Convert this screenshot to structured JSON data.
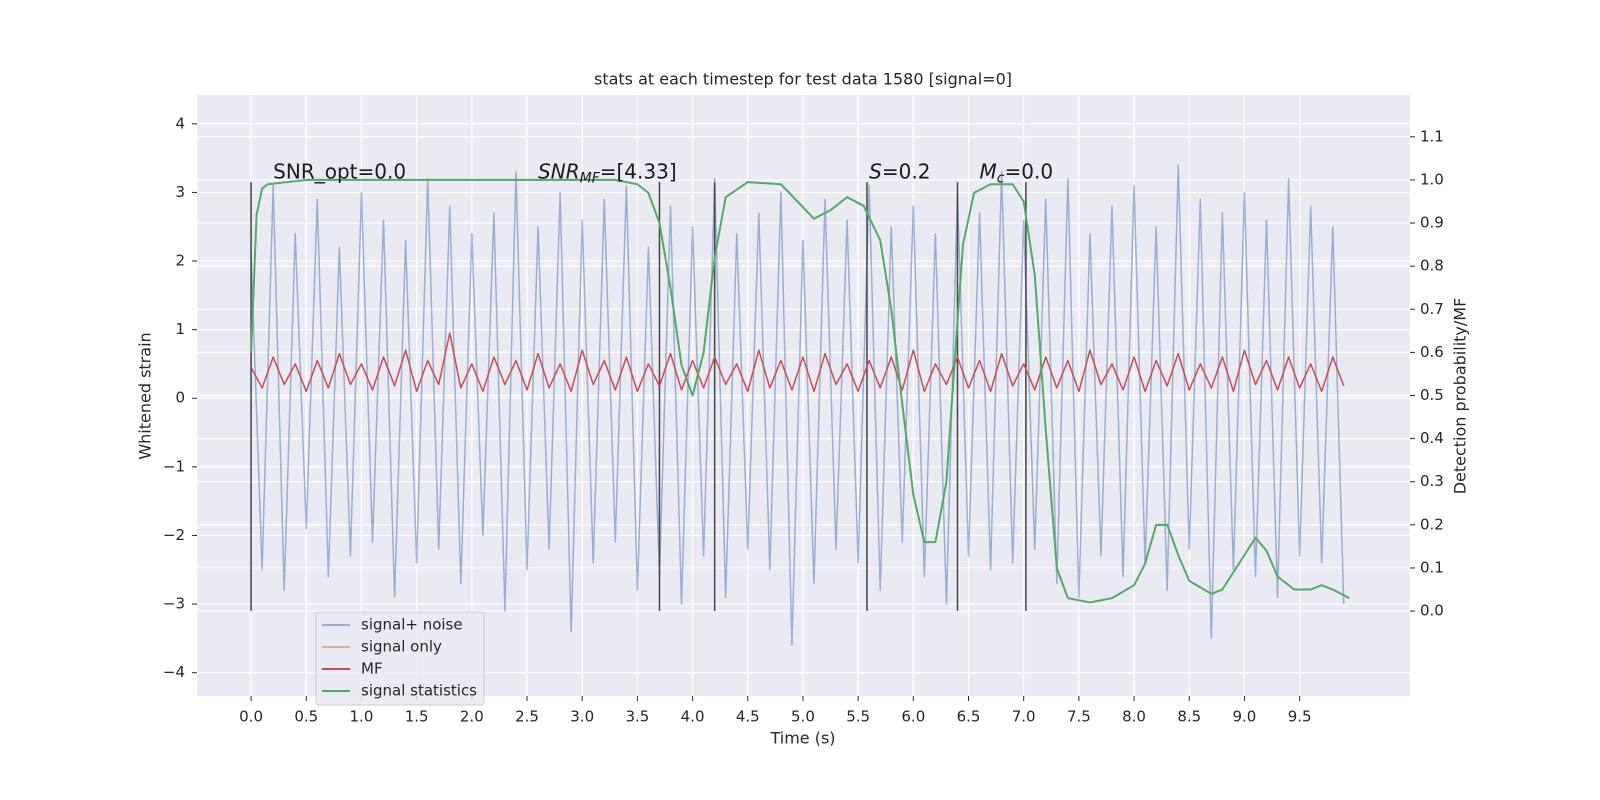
{
  "chart_data": {
    "type": "line",
    "title": "stats at each timestep for test data 1580 [signal=0]",
    "xlabel": "Time (s)",
    "ylabel": "Whitened strain",
    "y2label": "Detection probability/MF",
    "xlim": [
      -0.49,
      10.5
    ],
    "ylim": [
      -4.34,
      4.42
    ],
    "y2lim": [
      -0.197,
      1.197
    ],
    "xticks": [
      {
        "value": 0,
        "label": "0.0"
      },
      0.5,
      {
        "value": 1,
        "label": "1.0"
      },
      1.5,
      {
        "value": 2,
        "label": "2.0"
      },
      2.5,
      {
        "value": 3,
        "label": "3.0"
      },
      3.5,
      {
        "value": 4,
        "label": "4.0"
      },
      4.5,
      {
        "value": 5,
        "label": "5.0"
      },
      5.5,
      {
        "value": 6,
        "label": "6.0"
      },
      6.5,
      {
        "value": 7,
        "label": "7.0"
      },
      7.5,
      {
        "value": 8,
        "label": "8.0"
      },
      8.5,
      {
        "value": 9,
        "label": "9.0"
      },
      9.5
    ],
    "yticks": [
      {
        "value": -4,
        "label": "−4"
      },
      {
        "value": -3,
        "label": "−3"
      },
      {
        "value": -2,
        "label": "−2"
      },
      {
        "value": -1,
        "label": "−1"
      },
      0,
      1,
      2,
      3,
      4
    ],
    "y2ticks": [
      {
        "value": 0,
        "label": "0.0"
      },
      0.1,
      0.2,
      0.3,
      0.4,
      0.5,
      0.6,
      0.7,
      0.8,
      0.9,
      {
        "value": 1,
        "label": "1.0"
      },
      1.1
    ],
    "grid": true,
    "legend": "lower left",
    "x": [
      0.0,
      0.1,
      0.2,
      0.3,
      0.4,
      0.5,
      0.6,
      0.7,
      0.8,
      0.9,
      1.0,
      1.1,
      1.2,
      1.3,
      1.4,
      1.5,
      1.6,
      1.7,
      1.8,
      1.9,
      2.0,
      2.1,
      2.2,
      2.3,
      2.4,
      2.5,
      2.6,
      2.7,
      2.8,
      2.9,
      3.0,
      3.1,
      3.2,
      3.3,
      3.4,
      3.5,
      3.6,
      3.7,
      3.8,
      3.9,
      4.0,
      4.1,
      4.2,
      4.3,
      4.4,
      4.5,
      4.6,
      4.7,
      4.8,
      4.9,
      5.0,
      5.1,
      5.2,
      5.3,
      5.4,
      5.5,
      5.6,
      5.7,
      5.8,
      5.9,
      6.0,
      6.1,
      6.2,
      6.3,
      6.4,
      6.5,
      6.6,
      6.7,
      6.8,
      6.9,
      7.0,
      7.1,
      7.2,
      7.3,
      7.4,
      7.5,
      7.6,
      7.7,
      7.8,
      7.9,
      8.0,
      8.1,
      8.2,
      8.3,
      8.4,
      8.5,
      8.6,
      8.7,
      8.8,
      8.9,
      9.0,
      9.1,
      9.2,
      9.3,
      9.4,
      9.5,
      9.6,
      9.7,
      9.8,
      9.9
    ],
    "series": [
      {
        "name": "signal+ noise",
        "color": "#4c72b0",
        "values": [
          2.1,
          -2.5,
          3.1,
          -2.8,
          2.4,
          -1.9,
          2.9,
          -2.6,
          2.2,
          -2.3,
          3.0,
          -2.1,
          2.6,
          -2.9,
          2.3,
          -2.4,
          3.2,
          -2.2,
          2.8,
          -2.7,
          2.4,
          -2.0,
          2.7,
          -3.1,
          3.3,
          -2.5,
          2.5,
          -2.2,
          3.0,
          -3.4,
          2.6,
          -2.4,
          2.9,
          -2.1,
          3.1,
          -2.8,
          2.2,
          -2.6,
          2.8,
          -3.0,
          2.5,
          -2.3,
          3.2,
          -2.9,
          2.4,
          -2.2,
          2.7,
          -2.5,
          3.0,
          -3.6,
          2.3,
          -2.7,
          2.9,
          -2.2,
          2.6,
          -2.4,
          3.1,
          -2.8,
          2.5,
          -2.1,
          2.8,
          -2.6,
          2.4,
          -3.0,
          3.0,
          -2.3,
          2.7,
          -2.5,
          3.3,
          -2.4,
          2.6,
          -2.2,
          2.9,
          -2.7,
          3.2,
          -2.9,
          2.4,
          -2.3,
          2.8,
          -2.6,
          3.1,
          -2.4,
          2.5,
          -2.8,
          3.4,
          -2.2,
          2.9,
          -3.5,
          2.7,
          -2.5,
          3.0,
          -2.6,
          2.6,
          -2.9,
          3.2,
          -2.3,
          2.8,
          -2.4,
          2.5,
          -3.0
        ]
      },
      {
        "name": "signal only",
        "color": "#dd8452",
        "x": [],
        "values": []
      },
      {
        "name": "MF",
        "color": "#c44e52",
        "values": [
          0.45,
          0.15,
          0.6,
          0.2,
          0.5,
          0.1,
          0.55,
          0.15,
          0.65,
          0.2,
          0.5,
          0.12,
          0.6,
          0.18,
          0.7,
          0.1,
          0.55,
          0.2,
          0.95,
          0.15,
          0.5,
          0.1,
          0.6,
          0.2,
          0.55,
          0.12,
          0.65,
          0.15,
          0.5,
          0.1,
          0.7,
          0.2,
          0.55,
          0.12,
          0.6,
          0.1,
          0.5,
          0.18,
          0.65,
          0.12,
          0.55,
          0.15,
          0.6,
          0.2,
          0.5,
          0.1,
          0.7,
          0.15,
          0.55,
          0.12,
          0.6,
          0.1,
          0.65,
          0.2,
          0.5,
          0.1,
          0.55,
          0.15,
          0.6,
          0.12,
          0.7,
          0.1,
          0.5,
          0.2,
          0.6,
          0.15,
          0.55,
          0.1,
          0.65,
          0.18,
          0.5,
          0.12,
          0.6,
          0.15,
          0.55,
          0.1,
          0.7,
          0.2,
          0.5,
          0.12,
          0.6,
          0.1,
          0.55,
          0.18,
          0.65,
          0.12,
          0.5,
          0.15,
          0.6,
          0.1,
          0.7,
          0.2,
          0.55,
          0.12,
          0.6,
          0.15,
          0.5,
          0.1,
          0.6,
          0.18
        ]
      },
      {
        "name": "signal statistics",
        "color": "#55a868",
        "axis": "y2",
        "x": [
          0,
          0.05,
          0.1,
          0.15,
          0.5,
          3.3,
          3.5,
          3.6,
          3.7,
          3.8,
          3.9,
          4.0,
          4.1,
          4.2,
          4.3,
          4.5,
          4.8,
          4.95,
          5.1,
          5.25,
          5.4,
          5.55,
          5.7,
          5.8,
          5.9,
          6.0,
          6.1,
          6.2,
          6.3,
          6.38,
          6.45,
          6.55,
          6.7,
          6.9,
          7.0,
          7.1,
          7.2,
          7.3,
          7.4,
          7.6,
          7.8,
          8.0,
          8.1,
          8.2,
          8.3,
          8.4,
          8.5,
          8.7,
          8.8,
          9.0,
          9.1,
          9.2,
          9.3,
          9.45,
          9.6,
          9.7,
          9.8,
          9.95
        ],
        "values": [
          0.6,
          0.92,
          0.98,
          0.99,
          1.0,
          1.0,
          0.99,
          0.97,
          0.9,
          0.75,
          0.57,
          0.5,
          0.6,
          0.82,
          0.96,
          0.995,
          0.99,
          0.95,
          0.91,
          0.93,
          0.96,
          0.94,
          0.86,
          0.7,
          0.48,
          0.27,
          0.16,
          0.16,
          0.3,
          0.6,
          0.85,
          0.97,
          0.99,
          0.99,
          0.95,
          0.78,
          0.42,
          0.1,
          0.03,
          0.02,
          0.03,
          0.06,
          0.11,
          0.2,
          0.2,
          0.13,
          0.07,
          0.04,
          0.05,
          0.13,
          0.17,
          0.14,
          0.08,
          0.05,
          0.05,
          0.06,
          0.05,
          0.03
        ]
      }
    ],
    "vlines": {
      "color": "#444444",
      "x": [
        0.0,
        3.7,
        4.2,
        5.58,
        6.4,
        7.02
      ],
      "ymin": -3.1,
      "ymax": 3.15
    },
    "annotations": [
      {
        "x": 0.2,
        "y": 3.29,
        "parts": [
          "SNR_opt=0.0"
        ]
      },
      {
        "x": 2.6,
        "y": 3.29,
        "parts": [
          "SNR",
          "MF",
          "=[4.33]"
        ]
      },
      {
        "x": 5.6,
        "y": 3.29,
        "parts": [
          "S",
          "=0.2"
        ]
      },
      {
        "x": 6.6,
        "y": 3.29,
        "parts": [
          "M",
          "c",
          "=0.0"
        ]
      }
    ]
  }
}
